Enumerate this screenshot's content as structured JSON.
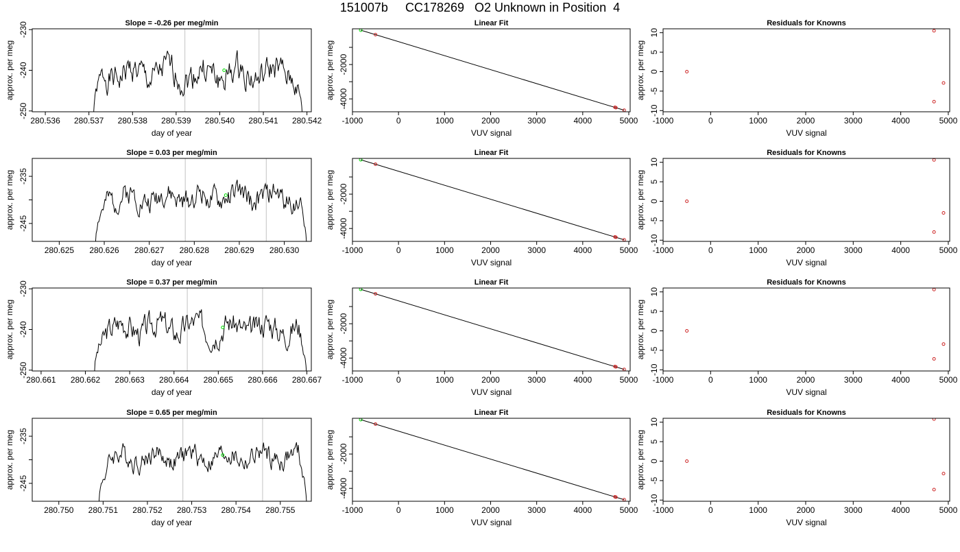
{
  "figure_title": "151007b     CC178269   O2 Unknown in Position  4",
  "colors": {
    "line": "#000000",
    "grid": "#cccccc",
    "green": "#00dd00",
    "red": "#cc2222"
  },
  "chart_data": [
    {
      "type": "line",
      "title": "Slope =  -0.26  per meg/min",
      "xlabel": "day of year",
      "ylabel": "approx. per meg",
      "xlim": [
        280.5357,
        280.5421
      ],
      "ylim": [
        -250.2,
        -229.8
      ],
      "xticks": [
        280.536,
        280.537,
        280.538,
        280.539,
        280.54,
        280.541,
        280.542
      ],
      "xtick_labels": [
        "280.536",
        "280.537",
        "280.538",
        "280.539",
        "280.540",
        "280.541",
        "280.542"
      ],
      "yticks": [
        -250,
        -240,
        -230
      ],
      "ytick_labels": [
        "-250",
        "-240",
        "-230"
      ],
      "signal": {
        "x_start": 280.5371,
        "x_end": 280.5419,
        "start_y": -252,
        "end_y": -252,
        "level": -241,
        "amplitude": 2.5,
        "seed": 1
      },
      "vlines": [
        280.5392,
        280.5409
      ],
      "marker": {
        "x": 280.5401,
        "y": -240,
        "color": "green"
      }
    },
    {
      "type": "scatter",
      "title": "Linear Fit",
      "xlabel": "VUV signal",
      "ylabel": "approx. per meg",
      "xlim": [
        -1000,
        5030
      ],
      "ylim": [
        -4750,
        80
      ],
      "xticks": [
        -1000,
        0,
        1000,
        2000,
        3000,
        4000,
        5000
      ],
      "xtick_labels": [
        "-1000",
        "0",
        "1000",
        "2000",
        "3000",
        "4000",
        "5000"
      ],
      "yticks": [
        -4000,
        -3000,
        -2000,
        -1000
      ],
      "ytick_labels": [
        "-4000",
        "",
        "-2000",
        ""
      ],
      "fit_line": [
        [
          -820,
          0
        ],
        [
          4900,
          -4660
        ]
      ],
      "points": [
        {
          "x": -820,
          "y": 0,
          "color": "green"
        },
        {
          "x": -500,
          "y": -260,
          "color": "red"
        },
        {
          "x": 4700,
          "y": -4490,
          "color": "red"
        },
        {
          "x": 4720,
          "y": -4510,
          "color": "red"
        },
        {
          "x": 4900,
          "y": -4660,
          "color": "red"
        }
      ]
    },
    {
      "type": "scatter",
      "title": "Residuals for Knowns",
      "xlabel": "VUV signal",
      "ylabel": "approx. per meg",
      "xlim": [
        -1000,
        5030
      ],
      "ylim": [
        -10.3,
        11
      ],
      "xticks": [
        -1000,
        0,
        1000,
        2000,
        3000,
        4000,
        5000
      ],
      "xtick_labels": [
        "-1000",
        "0",
        "1000",
        "2000",
        "3000",
        "4000",
        "5000"
      ],
      "yticks": [
        -10,
        -5,
        0,
        5,
        10
      ],
      "ytick_labels": [
        "-10",
        "-5",
        "0",
        "5",
        "10"
      ],
      "points": [
        {
          "x": -500,
          "y": 0,
          "color": "red"
        },
        {
          "x": 4700,
          "y": 10.5,
          "color": "red"
        },
        {
          "x": 4700,
          "y": -7.7,
          "color": "red"
        },
        {
          "x": 4900,
          "y": -2.9,
          "color": "red"
        }
      ]
    },
    {
      "type": "line",
      "title": "Slope =  0.03  per meg/min",
      "xlabel": "day of year",
      "ylabel": "approx. per meg",
      "xlim": [
        280.6244,
        280.6306
      ],
      "ylim": [
        -248.8,
        -231.2
      ],
      "xticks": [
        280.625,
        280.626,
        280.627,
        280.628,
        280.629,
        280.63
      ],
      "xtick_labels": [
        "280.625",
        "280.626",
        "280.627",
        "280.628",
        "280.629",
        "280.630"
      ],
      "yticks": [
        -245,
        -240,
        -235
      ],
      "ytick_labels": [
        "-245",
        "",
        "-235"
      ],
      "signal": {
        "x_start": 280.6258,
        "x_end": 280.6305,
        "start_y": -250,
        "end_y": -250,
        "level": -239.5,
        "amplitude": 1.8,
        "seed": 2
      },
      "vlines": [
        280.6278,
        280.6296
      ],
      "marker": {
        "x": 280.6287,
        "y": -239,
        "color": "green"
      }
    },
    {
      "type": "scatter",
      "title": "Linear Fit",
      "xlabel": "VUV signal",
      "ylabel": "approx. per meg",
      "xlim": [
        -1000,
        5030
      ],
      "ylim": [
        -4750,
        80
      ],
      "xticks": [
        -1000,
        0,
        1000,
        2000,
        3000,
        4000,
        5000
      ],
      "xtick_labels": [
        "-1000",
        "0",
        "1000",
        "2000",
        "3000",
        "4000",
        "5000"
      ],
      "yticks": [
        -4000,
        -3000,
        -2000,
        -1000
      ],
      "ytick_labels": [
        "-4000",
        "",
        "-2000",
        ""
      ],
      "fit_line": [
        [
          -820,
          0
        ],
        [
          4900,
          -4660
        ]
      ],
      "points": [
        {
          "x": -820,
          "y": 0,
          "color": "green"
        },
        {
          "x": -500,
          "y": -260,
          "color": "red"
        },
        {
          "x": 4700,
          "y": -4490,
          "color": "red"
        },
        {
          "x": 4720,
          "y": -4510,
          "color": "red"
        },
        {
          "x": 4900,
          "y": -4660,
          "color": "red"
        }
      ]
    },
    {
      "type": "scatter",
      "title": "Residuals for Knowns",
      "xlabel": "VUV signal",
      "ylabel": "approx. per meg",
      "xlim": [
        -1000,
        5030
      ],
      "ylim": [
        -10.3,
        11
      ],
      "xticks": [
        -1000,
        0,
        1000,
        2000,
        3000,
        4000,
        5000
      ],
      "xtick_labels": [
        "-1000",
        "0",
        "1000",
        "2000",
        "3000",
        "4000",
        "5000"
      ],
      "yticks": [
        -10,
        -5,
        0,
        5,
        10
      ],
      "ytick_labels": [
        "-10",
        "-5",
        "0",
        "5",
        "10"
      ],
      "points": [
        {
          "x": -500,
          "y": 0,
          "color": "red"
        },
        {
          "x": 4700,
          "y": 10.6,
          "color": "red"
        },
        {
          "x": 4700,
          "y": -7.9,
          "color": "red"
        },
        {
          "x": 4900,
          "y": -3.0,
          "color": "red"
        }
      ]
    },
    {
      "type": "line",
      "title": "Slope =  0.37  per meg/min",
      "xlabel": "day of year",
      "ylabel": "approx. per meg",
      "xlim": [
        280.6608,
        280.6671
      ],
      "ylim": [
        -250.2,
        -229.8
      ],
      "xticks": [
        280.661,
        280.662,
        280.663,
        280.664,
        280.665,
        280.666,
        280.667
      ],
      "xtick_labels": [
        "280.661",
        "280.662",
        "280.663",
        "280.664",
        "280.665",
        "280.666",
        "280.667"
      ],
      "yticks": [
        -250,
        -240,
        -230
      ],
      "ytick_labels": [
        "-250",
        "-240",
        "-230"
      ],
      "signal": {
        "x_start": 280.6622,
        "x_end": 280.667,
        "start_y": -252,
        "end_y": -252,
        "level": -239.5,
        "amplitude": 2.3,
        "seed": 3
      },
      "vlines": [
        280.6643,
        280.666
      ],
      "marker": {
        "x": 280.6651,
        "y": -239.5,
        "color": "green"
      }
    },
    {
      "type": "scatter",
      "title": "Linear Fit",
      "xlabel": "VUV signal",
      "ylabel": "approx. per meg",
      "xlim": [
        -1000,
        5030
      ],
      "ylim": [
        -4750,
        80
      ],
      "xticks": [
        -1000,
        0,
        1000,
        2000,
        3000,
        4000,
        5000
      ],
      "xtick_labels": [
        "-1000",
        "0",
        "1000",
        "2000",
        "3000",
        "4000",
        "5000"
      ],
      "yticks": [
        -4000,
        -3000,
        -2000,
        -1000
      ],
      "ytick_labels": [
        "-4000",
        "",
        "-2000",
        ""
      ],
      "fit_line": [
        [
          -820,
          0
        ],
        [
          4900,
          -4660
        ]
      ],
      "points": [
        {
          "x": -820,
          "y": 0,
          "color": "green"
        },
        {
          "x": -500,
          "y": -260,
          "color": "red"
        },
        {
          "x": 4700,
          "y": -4490,
          "color": "red"
        },
        {
          "x": 4720,
          "y": -4510,
          "color": "red"
        },
        {
          "x": 4900,
          "y": -4660,
          "color": "red"
        }
      ]
    },
    {
      "type": "scatter",
      "title": "Residuals for Knowns",
      "xlabel": "VUV signal",
      "ylabel": "approx. per meg",
      "xlim": [
        -1000,
        5030
      ],
      "ylim": [
        -10.3,
        11
      ],
      "xticks": [
        -1000,
        0,
        1000,
        2000,
        3000,
        4000,
        5000
      ],
      "xtick_labels": [
        "-1000",
        "0",
        "1000",
        "2000",
        "3000",
        "4000",
        "5000"
      ],
      "yticks": [
        -10,
        -5,
        0,
        5,
        10
      ],
      "ytick_labels": [
        "-10",
        "-5",
        "0",
        "5",
        "10"
      ],
      "points": [
        {
          "x": -500,
          "y": 0,
          "color": "red"
        },
        {
          "x": 4700,
          "y": 10.6,
          "color": "red"
        },
        {
          "x": 4700,
          "y": -7.2,
          "color": "red"
        },
        {
          "x": 4900,
          "y": -3.4,
          "color": "red"
        }
      ]
    },
    {
      "type": "line",
      "title": "Slope =  0.65  per meg/min",
      "xlabel": "day of year",
      "ylabel": "approx. per meg",
      "xlim": [
        280.7494,
        280.7557
      ],
      "ylim": [
        -248.8,
        -231.2
      ],
      "xticks": [
        280.75,
        280.751,
        280.752,
        280.753,
        280.754,
        280.755
      ],
      "xtick_labels": [
        "280.750",
        "280.751",
        "280.752",
        "280.753",
        "280.754",
        "280.755"
      ],
      "yticks": [
        -245,
        -240,
        -235
      ],
      "ytick_labels": [
        "-245",
        "",
        "-235"
      ],
      "signal": {
        "x_start": 280.7509,
        "x_end": 280.7556,
        "start_y": -250,
        "end_y": -250,
        "level": -239.5,
        "amplitude": 1.6,
        "seed": 4
      },
      "vlines": [
        280.7528,
        280.7546
      ],
      "marker": {
        "x": 280.7537,
        "y": -239,
        "color": "green"
      }
    },
    {
      "type": "scatter",
      "title": "Linear Fit",
      "xlabel": "VUV signal",
      "ylabel": "approx. per meg",
      "xlim": [
        -1000,
        5030
      ],
      "ylim": [
        -4750,
        80
      ],
      "xticks": [
        -1000,
        0,
        1000,
        2000,
        3000,
        4000,
        5000
      ],
      "xtick_labels": [
        "-1000",
        "0",
        "1000",
        "2000",
        "3000",
        "4000",
        "5000"
      ],
      "yticks": [
        -4000,
        -3000,
        -2000,
        -1000
      ],
      "ytick_labels": [
        "-4000",
        "",
        "-2000",
        ""
      ],
      "fit_line": [
        [
          -820,
          0
        ],
        [
          4900,
          -4660
        ]
      ],
      "points": [
        {
          "x": -820,
          "y": 0,
          "color": "green"
        },
        {
          "x": -500,
          "y": -260,
          "color": "red"
        },
        {
          "x": 4700,
          "y": -4490,
          "color": "red"
        },
        {
          "x": 4720,
          "y": -4510,
          "color": "red"
        },
        {
          "x": 4900,
          "y": -4660,
          "color": "red"
        }
      ]
    },
    {
      "type": "scatter",
      "title": "Residuals for Knowns",
      "xlabel": "VUV signal",
      "ylabel": "approx. per meg",
      "xlim": [
        -1000,
        5030
      ],
      "ylim": [
        -10.3,
        11
      ],
      "xticks": [
        -1000,
        0,
        1000,
        2000,
        3000,
        4000,
        5000
      ],
      "xtick_labels": [
        "-1000",
        "0",
        "1000",
        "2000",
        "3000",
        "4000",
        "5000"
      ],
      "yticks": [
        -10,
        -5,
        0,
        5,
        10
      ],
      "ytick_labels": [
        "-10",
        "-5",
        "0",
        "5",
        "10"
      ],
      "points": [
        {
          "x": -500,
          "y": 0,
          "color": "red"
        },
        {
          "x": 4700,
          "y": 10.8,
          "color": "red"
        },
        {
          "x": 4700,
          "y": -7.3,
          "color": "red"
        },
        {
          "x": 4900,
          "y": -3.2,
          "color": "red"
        }
      ]
    }
  ]
}
